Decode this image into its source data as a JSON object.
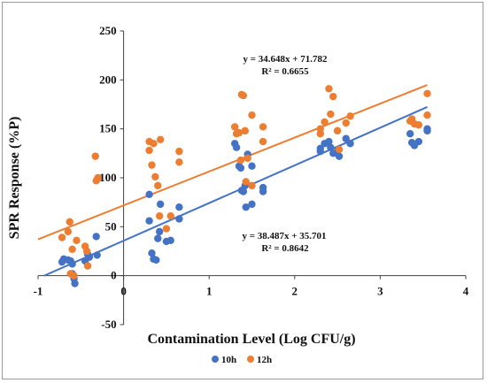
{
  "chart_data": {
    "type": "scatter",
    "xlabel": "Contamination Level (Log CFU/g)",
    "ylabel": "SPR Response (%P)",
    "xlim": [
      -1,
      4
    ],
    "ylim": [
      -50,
      250
    ],
    "xticks": [
      "-1",
      "0",
      "1",
      "2",
      "3",
      "4"
    ],
    "yticks": [
      "-50",
      "0",
      "50",
      "100",
      "150",
      "200",
      "250"
    ],
    "grid": false,
    "legend_position": "bottom-center",
    "colors": {
      "10h": "#4472c4",
      "12h": "#ed7d31"
    },
    "series": [
      {
        "name": "10h",
        "color": "#4472c4",
        "points": [
          [
            -0.72,
            14
          ],
          [
            -0.7,
            17
          ],
          [
            -0.65,
            16
          ],
          [
            -0.62,
            15
          ],
          [
            -0.6,
            12
          ],
          [
            -0.6,
            2
          ],
          [
            -0.58,
            -3
          ],
          [
            -0.57,
            -8
          ],
          [
            -0.45,
            15
          ],
          [
            -0.42,
            22
          ],
          [
            -0.4,
            19
          ],
          [
            -0.32,
            40
          ],
          [
            -0.31,
            21
          ],
          [
            0.3,
            83
          ],
          [
            0.3,
            56
          ],
          [
            0.33,
            23
          ],
          [
            0.35,
            17
          ],
          [
            0.38,
            16
          ],
          [
            0.4,
            38
          ],
          [
            0.42,
            45
          ],
          [
            0.43,
            73
          ],
          [
            0.5,
            35
          ],
          [
            0.55,
            36
          ],
          [
            0.65,
            70
          ],
          [
            0.65,
            58
          ],
          [
            1.3,
            135
          ],
          [
            1.32,
            131
          ],
          [
            1.35,
            112
          ],
          [
            1.37,
            110
          ],
          [
            1.38,
            87
          ],
          [
            1.4,
            86
          ],
          [
            1.42,
            92
          ],
          [
            1.43,
            70
          ],
          [
            1.45,
            124
          ],
          [
            1.5,
            73
          ],
          [
            1.5,
            112
          ],
          [
            1.63,
            86
          ],
          [
            1.63,
            90
          ],
          [
            2.3,
            127
          ],
          [
            2.3,
            130
          ],
          [
            2.35,
            135
          ],
          [
            2.4,
            137
          ],
          [
            2.42,
            131
          ],
          [
            2.45,
            125
          ],
          [
            2.5,
            127
          ],
          [
            2.52,
            122
          ],
          [
            2.6,
            140
          ],
          [
            2.65,
            135
          ],
          [
            3.35,
            145
          ],
          [
            3.37,
            136
          ],
          [
            3.4,
            133
          ],
          [
            3.45,
            137
          ],
          [
            3.55,
            148
          ],
          [
            3.55,
            150
          ]
        ]
      },
      {
        "name": "12h",
        "color": "#ed7d31",
        "points": [
          [
            -0.72,
            39
          ],
          [
            -0.65,
            45
          ],
          [
            -0.63,
            55
          ],
          [
            -0.62,
            2
          ],
          [
            -0.6,
            27
          ],
          [
            -0.58,
            0
          ],
          [
            -0.55,
            36
          ],
          [
            -0.45,
            30
          ],
          [
            -0.43,
            25
          ],
          [
            -0.42,
            10
          ],
          [
            -0.33,
            122
          ],
          [
            -0.32,
            97
          ],
          [
            -0.3,
            100
          ],
          [
            0.3,
            137
          ],
          [
            0.3,
            128
          ],
          [
            0.33,
            113
          ],
          [
            0.35,
            135
          ],
          [
            0.37,
            101
          ],
          [
            0.4,
            92
          ],
          [
            0.42,
            61
          ],
          [
            0.43,
            139
          ],
          [
            0.5,
            48
          ],
          [
            0.55,
            61
          ],
          [
            0.65,
            127
          ],
          [
            0.65,
            116
          ],
          [
            1.3,
            152
          ],
          [
            1.32,
            145
          ],
          [
            1.35,
            146
          ],
          [
            1.37,
            118
          ],
          [
            1.38,
            185
          ],
          [
            1.4,
            184
          ],
          [
            1.42,
            148
          ],
          [
            1.43,
            96
          ],
          [
            1.45,
            120
          ],
          [
            1.5,
            164
          ],
          [
            1.5,
            92
          ],
          [
            1.63,
            152
          ],
          [
            1.63,
            137
          ],
          [
            2.3,
            145
          ],
          [
            2.3,
            150
          ],
          [
            2.35,
            157
          ],
          [
            2.4,
            191
          ],
          [
            2.42,
            165
          ],
          [
            2.45,
            183
          ],
          [
            2.5,
            148
          ],
          [
            2.52,
            129
          ],
          [
            2.6,
            156
          ],
          [
            2.65,
            163
          ],
          [
            3.35,
            158
          ],
          [
            3.37,
            160
          ],
          [
            3.4,
            155
          ],
          [
            3.45,
            154
          ],
          [
            3.55,
            186
          ],
          [
            3.55,
            164
          ]
        ]
      }
    ],
    "trendlines": [
      {
        "series": "10h",
        "slope": 38.487,
        "intercept": 35.701,
        "r2": 0.8642,
        "x_range": [
          -0.93,
          3.55
        ],
        "equation": "y = 38.487x + 35.701",
        "r2_label": "R² = 0.8642"
      },
      {
        "series": "12h",
        "slope": 34.648,
        "intercept": 71.782,
        "r2": 0.6655,
        "x_range": [
          -1,
          3.55
        ],
        "equation": "y = 34.648x + 71.782",
        "r2_label": "R² = 0.6655"
      }
    ]
  }
}
